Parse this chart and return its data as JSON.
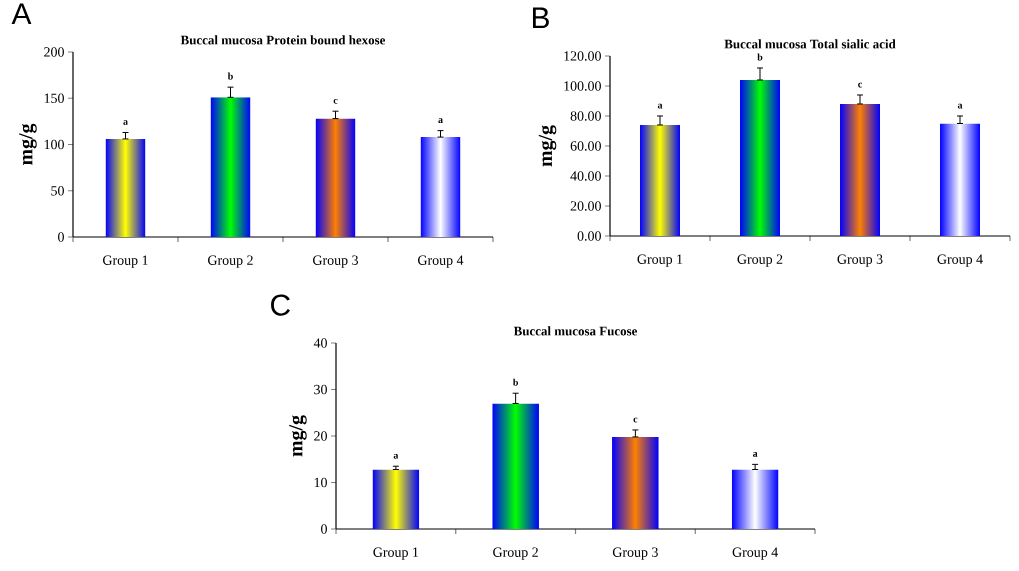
{
  "chart_data": [
    {
      "type": "bar",
      "title": "Buccal mucosa Protein bound hexose",
      "ylabel": "mg/g",
      "categories": [
        "Group 1",
        "Group 2",
        "Group 3",
        "Group 4"
      ],
      "values": [
        106,
        151,
        128,
        108
      ],
      "errors": [
        [
          106,
          113
        ],
        [
          151,
          162
        ],
        [
          128,
          136
        ],
        [
          108,
          115
        ]
      ],
      "colors": [
        "#ffff00",
        "#00ff00",
        "#ff8000",
        "#ffffff"
      ],
      "ylim": [
        0,
        200
      ],
      "yticks": [
        0,
        50,
        100,
        150,
        200
      ],
      "annotations": [
        "A",
        "a",
        "b",
        "c",
        "a"
      ]
    },
    {
      "type": "bar",
      "title": "Buccal mucosa Total sialic acid",
      "ylabel": "mg/g",
      "categories": [
        "Group 1",
        "Group 2",
        "Group 3",
        "Group 4"
      ],
      "values": [
        74,
        104,
        88,
        75
      ],
      "errors": [
        [
          74,
          80
        ],
        [
          104,
          112
        ],
        [
          88,
          94
        ],
        [
          75,
          80
        ]
      ],
      "colors": [
        "#ffff00",
        "#00ff00",
        "#ff8000",
        "#ffffff"
      ],
      "ylim": [
        0,
        120
      ],
      "yticks": [
        {
          "value": 0,
          "label": "0.00"
        },
        {
          "value": 20,
          "label": "20.00"
        },
        {
          "value": 40,
          "label": "40.00"
        },
        {
          "value": 60,
          "label": "60.00"
        },
        {
          "value": 80,
          "label": "80.00"
        },
        {
          "value": 100,
          "label": "100.00"
        },
        {
          "value": 120,
          "label": "120.00"
        }
      ],
      "annotations": [
        "B",
        "a",
        "b",
        "c",
        "a"
      ]
    },
    {
      "type": "bar",
      "title": "Buccal mucosa Fucose",
      "ylabel": "mg/g",
      "categories": [
        "Group 1",
        "Group 2",
        "Group 3",
        "Group 4"
      ],
      "values": [
        12.8,
        27,
        19.8,
        12.8
      ],
      "errors": [
        [
          12.8,
          13.5
        ],
        [
          27,
          29.2
        ],
        [
          19.8,
          21.3
        ],
        [
          12.8,
          13.9
        ]
      ],
      "colors": [
        "#ffff00",
        "#00ff00",
        "#ff8000",
        "#ffffff"
      ],
      "ylim": [
        0,
        40
      ],
      "yticks": [
        0,
        10,
        20,
        30,
        40
      ],
      "annotations": [
        "C",
        "a",
        "b",
        "c",
        "a"
      ]
    }
  ]
}
